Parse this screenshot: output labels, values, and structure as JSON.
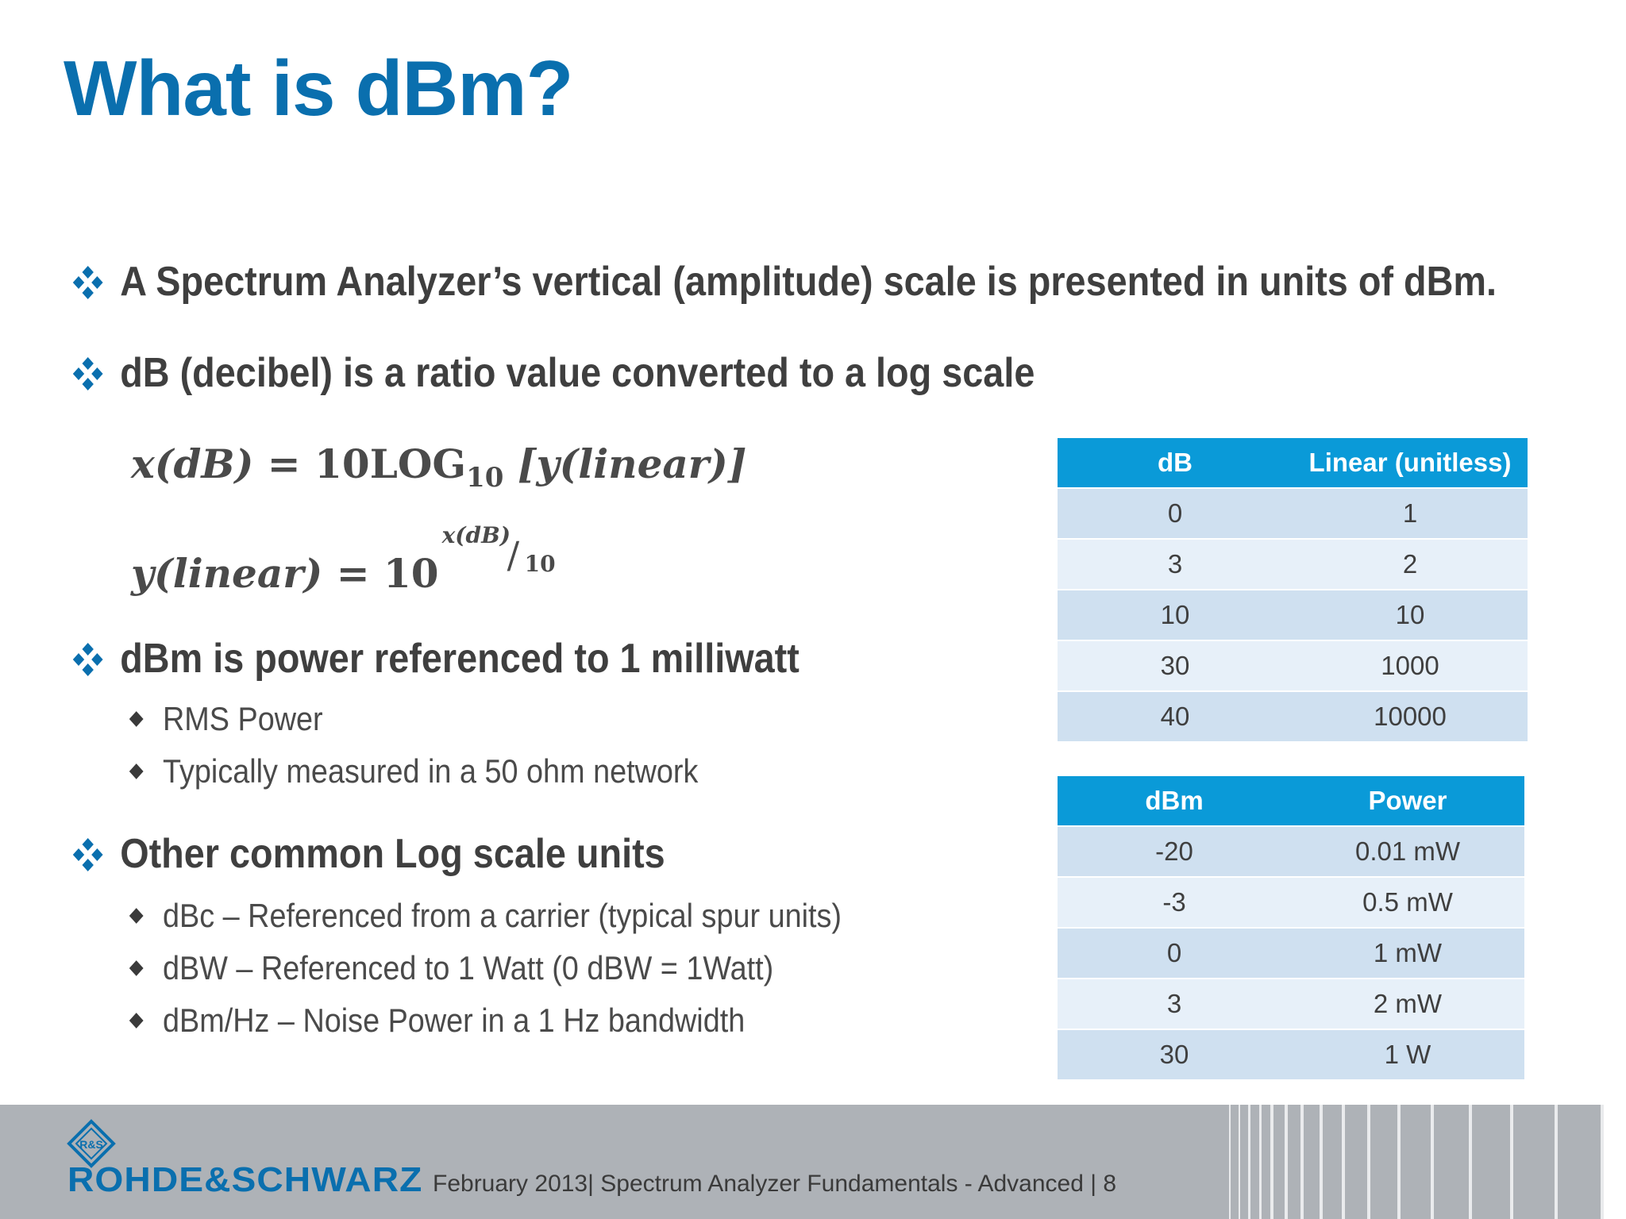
{
  "slide": {
    "title": "What is dBm?"
  },
  "bullets": [
    {
      "text": "A Spectrum Analyzer’s vertical (amplitude) scale is presented in units of dBm."
    },
    {
      "text": "dB (decibel) is a ratio value converted to a log scale"
    },
    {
      "text": "dBm is power referenced to 1 milliwatt",
      "sub": [
        "RMS Power",
        "Typically measured in a 50 ohm network"
      ]
    },
    {
      "text": "Other common Log scale units",
      "sub": [
        "dBc – Referenced from a carrier (typical spur units)",
        "dBW – Referenced to 1 Watt (0 dBW = 1Watt)",
        "dBm/Hz – Noise Power in a 1 Hz bandwidth"
      ]
    }
  ],
  "formulas": {
    "f1": {
      "lhs": "x(dB)",
      "eq": "=",
      "rhs": "10LOG",
      "sub": "10",
      "arg": "[y(linear)]"
    },
    "f2": {
      "lhs": "y(linear)",
      "eq": "=",
      "base": "10",
      "exp_num": "x(dB)",
      "exp_slash": "/",
      "exp_den": "10"
    }
  },
  "table_db": {
    "headers": [
      "dB",
      "Linear (unitless)"
    ],
    "rows": [
      [
        "0",
        "1"
      ],
      [
        "3",
        "2"
      ],
      [
        "10",
        "10"
      ],
      [
        "30",
        "1000"
      ],
      [
        "40",
        "10000"
      ]
    ]
  },
  "table_dbm": {
    "headers": [
      "dBm",
      "Power"
    ],
    "rows": [
      [
        "-20",
        "0.01 mW"
      ],
      [
        "-3",
        "0.5 mW"
      ],
      [
        "0",
        "1 mW"
      ],
      [
        "3",
        "2 mW"
      ],
      [
        "30",
        "1 W"
      ]
    ]
  },
  "footer": {
    "brand": "ROHDE&SCHWARZ",
    "logo_letters": "R&S",
    "text": "February 2013|  Spectrum Analyzer Fundamentals - Advanced  |  8"
  },
  "colors": {
    "title": "#0a6fae",
    "table_header": "#0a9ad8",
    "row_odd": "#cfe0f0",
    "row_even": "#e7f0f9",
    "footer_bg": "#aeb2b7"
  },
  "icons": {
    "level1_bullet": "four-diamond-bullet-icon",
    "level2_bullet": "small-diamond-bullet-icon",
    "logo": "rohde-schwarz-logo-icon"
  }
}
